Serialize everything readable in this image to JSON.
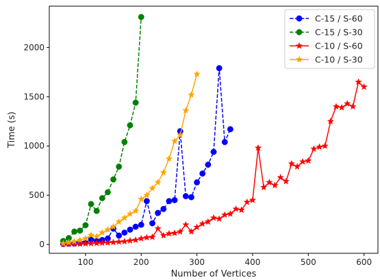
{
  "chart_data": {
    "type": "line",
    "title": "",
    "xlabel": "Number of Vertices",
    "ylabel": "Time (s)",
    "xlim": [
      35,
      625
    ],
    "ylim": [
      -90,
      2420
    ],
    "xticks": [
      100,
      200,
      300,
      400,
      500,
      600
    ],
    "yticks": [
      0,
      500,
      1000,
      1500,
      2000
    ],
    "grid": false,
    "legend_position": "top-right",
    "series": [
      {
        "name": "C-15 / S-60",
        "color": "#0000ff",
        "linestyle": "dashed",
        "marker": "circle",
        "x": [
          60,
          70,
          80,
          90,
          100,
          110,
          120,
          130,
          140,
          150,
          160,
          170,
          180,
          190,
          200,
          210,
          220,
          230,
          240,
          250,
          260,
          270,
          280,
          290,
          300,
          310,
          320,
          330,
          340,
          350,
          360
        ],
        "y": [
          5,
          8,
          10,
          15,
          20,
          50,
          40,
          45,
          60,
          160,
          90,
          120,
          150,
          180,
          200,
          440,
          215,
          320,
          360,
          440,
          450,
          1150,
          490,
          480,
          630,
          720,
          810,
          940,
          1790,
          1040,
          1170
        ]
      },
      {
        "name": "C-15 / S-30",
        "color": "#008000",
        "linestyle": "dashed",
        "marker": "circle",
        "x": [
          60,
          70,
          80,
          90,
          100,
          110,
          120,
          130,
          140,
          150,
          160,
          170,
          180,
          190,
          200
        ],
        "y": [
          35,
          65,
          130,
          140,
          195,
          410,
          340,
          470,
          530,
          660,
          790,
          1040,
          1210,
          1440,
          2310
        ]
      },
      {
        "name": "C-10 / S-60",
        "color": "#ff0000",
        "linestyle": "solid",
        "marker": "star",
        "x": [
          60,
          70,
          80,
          90,
          100,
          110,
          120,
          130,
          140,
          150,
          160,
          170,
          180,
          190,
          200,
          210,
          220,
          230,
          240,
          250,
          260,
          270,
          280,
          290,
          300,
          310,
          320,
          330,
          340,
          350,
          360,
          370,
          380,
          390,
          400,
          410,
          420,
          430,
          440,
          450,
          460,
          470,
          480,
          490,
          500,
          510,
          520,
          530,
          540,
          550,
          560,
          570,
          580,
          590,
          600
        ],
        "y": [
          2,
          3,
          4,
          5,
          8,
          10,
          12,
          15,
          18,
          22,
          26,
          30,
          38,
          45,
          60,
          70,
          75,
          160,
          90,
          110,
          115,
          130,
          200,
          130,
          175,
          210,
          230,
          270,
          260,
          300,
          310,
          360,
          350,
          430,
          450,
          980,
          580,
          630,
          600,
          680,
          640,
          820,
          790,
          840,
          850,
          970,
          990,
          1000,
          1250,
          1400,
          1390,
          1430,
          1400,
          1650,
          1600
        ]
      },
      {
        "name": "C-10 / S-30",
        "color": "#ffa500",
        "linestyle": "solid",
        "marker": "star",
        "x": [
          60,
          70,
          80,
          90,
          100,
          110,
          120,
          130,
          140,
          150,
          160,
          170,
          180,
          190,
          200,
          210,
          220,
          230,
          240,
          250,
          260,
          270,
          280,
          290,
          300
        ],
        "y": [
          10,
          20,
          30,
          45,
          60,
          95,
          80,
          120,
          150,
          180,
          230,
          270,
          310,
          340,
          460,
          500,
          570,
          630,
          730,
          870,
          1050,
          1110,
          1360,
          1520,
          1730
        ]
      }
    ]
  }
}
